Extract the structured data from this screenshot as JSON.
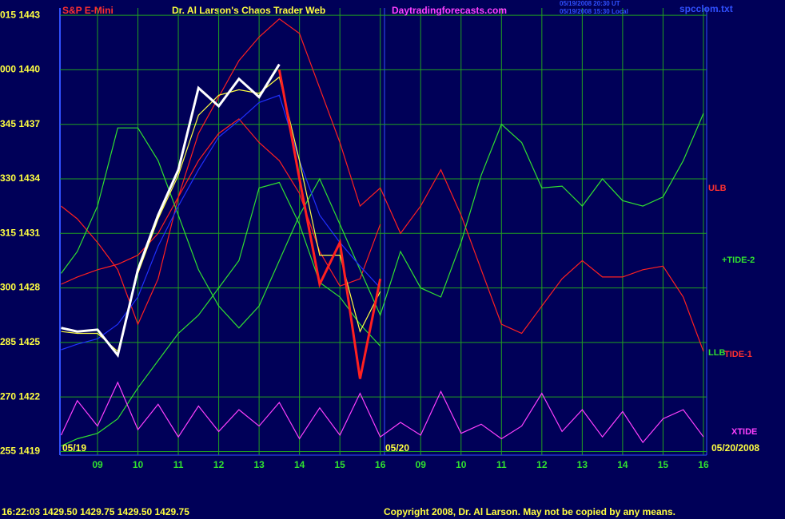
{
  "chart_data": {
    "type": "line",
    "title": "Dr. Al Larson's Chaos Trader Web",
    "subtitle": "S&P E-Mini",
    "annotations": [
      "Daytradingforecasts.com",
      "05/19/2008 20:30 UT",
      "05/19/2008 15:30 Local",
      "spcclom.txt",
      "ULB",
      "+TIDE-2",
      "LLB",
      "TIDE-1",
      "XTIDE",
      "05/19",
      "05/20",
      "05/20/2008",
      "16:22:03  1429.50  1429.75  1429.50  1429.75",
      "Copyright 2008, Dr. Al Larson. May not be copied by any means."
    ],
    "x": [
      8.1,
      8.5,
      9,
      9.5,
      10,
      10.5,
      11,
      11.5,
      12,
      12.5,
      13,
      13.5,
      14,
      14.5,
      15,
      15.5,
      16,
      16.5,
      17,
      17.5,
      18,
      18.5,
      19,
      19.5,
      20,
      20.5,
      21,
      21.5,
      22,
      22.5,
      23,
      23.5,
      24
    ],
    "xlim": [
      8.07,
      24.08
    ],
    "xticks": [
      {
        "value": 9,
        "label": "09"
      },
      10,
      11,
      12,
      13,
      14,
      15,
      16,
      {
        "value": 17,
        "label": "09"
      },
      {
        "value": 18,
        "label": "10"
      },
      {
        "value": 19,
        "label": "11"
      },
      {
        "value": 20,
        "label": "12"
      },
      {
        "value": 21,
        "label": "13"
      },
      {
        "value": 22,
        "label": "14"
      },
      {
        "value": 23,
        "label": "15"
      },
      {
        "value": 24,
        "label": "16"
      }
    ],
    "ylim": [
      1418.8,
      1443.4
    ],
    "yticks": [
      {
        "value": 1419,
        "label": "255 1419"
      },
      {
        "value": 1422,
        "label": "270 1422"
      },
      {
        "value": 1425,
        "label": "285 1425"
      },
      {
        "value": 1428,
        "label": "300 1428"
      },
      {
        "value": 1431,
        "label": "315 1431"
      },
      {
        "value": 1434,
        "label": "330 1434"
      },
      {
        "value": 1437,
        "label": "345 1437"
      },
      {
        "value": 1440,
        "label": "000 1440"
      },
      {
        "value": 1443,
        "label": "015 1443"
      }
    ],
    "grid": true,
    "series": [
      {
        "color": "#ff2020",
        "values": [
          1432.5,
          1431.8,
          1430.5,
          1429,
          1426,
          1428.5,
          1433,
          1436.5,
          1438.5,
          1440.5,
          1441.8,
          1442.8,
          1442,
          1439,
          1436,
          1432.5,
          1433.5,
          1431,
          1432.5,
          1434.5,
          1432,
          1429,
          1426,
          1425.5,
          1427,
          1428.5,
          1429.5,
          1428.6,
          1428.6,
          1429,
          1429.2,
          1427.5,
          1424.5
        ]
      },
      {
        "color": "#ff2020",
        "values": [
          1428.2,
          1428.6,
          1429,
          1429.3,
          1429.8,
          1431,
          1433,
          1435,
          1436.5,
          1437.3,
          1436,
          1435,
          1433.2,
          1430,
          1428.1,
          1428.5,
          1431.5,
          null,
          null,
          null,
          null,
          null,
          null,
          null,
          null,
          null,
          null,
          null,
          null,
          null,
          null,
          null,
          null
        ]
      },
      {
        "color": "#30e030",
        "values": [
          1428.8,
          1430,
          1432.5,
          1436.8,
          1436.8,
          1435,
          1432,
          1429,
          1427,
          1425.8,
          1427,
          1429.5,
          1432,
          1434,
          1431.5,
          1429,
          1426.5,
          1430,
          1428,
          1427.5,
          1430.5,
          1434.2,
          1437,
          1436,
          1433.5,
          1433.6,
          1432.5,
          1434,
          1432.8,
          1432.5,
          1433,
          1435,
          1437.6
        ]
      },
      {
        "color": "#30e030",
        "values": [
          1419.3,
          1419.7,
          1420,
          1420.8,
          1422.5,
          1424,
          1425.5,
          1426.5,
          1428,
          1429.5,
          1433.5,
          1433.8,
          1431.5,
          1428.3,
          1427.5,
          1426,
          1424.8,
          null,
          null,
          null,
          null,
          null,
          null,
          null,
          null,
          null,
          null,
          null,
          null,
          null,
          null,
          null,
          null
        ]
      },
      {
        "color": "#2030ff",
        "values": [
          1424.6,
          1424.9,
          1425.2,
          1426,
          1427.5,
          1430.3,
          1432.5,
          1434.5,
          1436.3,
          1437.2,
          1438.2,
          1438.6,
          1435,
          1432,
          1430.5,
          1429.2,
          1428,
          null,
          null,
          null,
          null,
          null,
          null,
          null,
          null,
          null,
          null,
          null,
          null,
          null,
          null,
          null,
          null
        ]
      },
      {
        "color": "#ff40ff",
        "values": [
          1419.9,
          1421.8,
          1420.4,
          1422.8,
          1420.2,
          1421.6,
          1419.8,
          1421.5,
          1420.1,
          1421.3,
          1420.4,
          1421.7,
          1419.7,
          1421.4,
          1419.9,
          1422.2,
          1419.8,
          1420.6,
          1419.9,
          1422.3,
          1420,
          1420.5,
          1419.7,
          1420.4,
          1422.2,
          1420.1,
          1421.3,
          1419.8,
          1421.2,
          1419.5,
          1420.8,
          1421.3,
          1419.8
        ]
      },
      {
        "color": "#ffff40",
        "values": [
          1425.6,
          1425.5,
          1425.5,
          1424.5,
          1428.8,
          1431.8,
          1434.2,
          1437.5,
          1438.6,
          1438.9,
          1438.7,
          1439.6,
          1435,
          1429.8,
          1429.8,
          1425.6,
          1427.8,
          null,
          null,
          null,
          null,
          null,
          null,
          null,
          null,
          null,
          null,
          null,
          null,
          null,
          null,
          null,
          null
        ]
      },
      {
        "color": "#ffffff",
        "values": [
          1425.8,
          1425.6,
          1425.7,
          1424.3,
          1429,
          1432,
          1434.5,
          1439,
          1438,
          1439.5,
          1438.5,
          1440.3,
          null,
          null,
          null,
          null,
          null,
          null,
          null,
          null,
          null,
          null,
          null,
          null,
          null,
          null,
          null,
          null,
          null,
          null,
          null,
          null,
          null
        ]
      },
      {
        "color": "#ff2020",
        "values": [
          null,
          null,
          null,
          null,
          null,
          null,
          null,
          null,
          null,
          null,
          null,
          1440,
          1434,
          1428.2,
          1430.5,
          1423,
          1428.5,
          null,
          null,
          null,
          null,
          null,
          null,
          null,
          null,
          null,
          null,
          null,
          null,
          null,
          null,
          null,
          null
        ]
      }
    ]
  }
}
